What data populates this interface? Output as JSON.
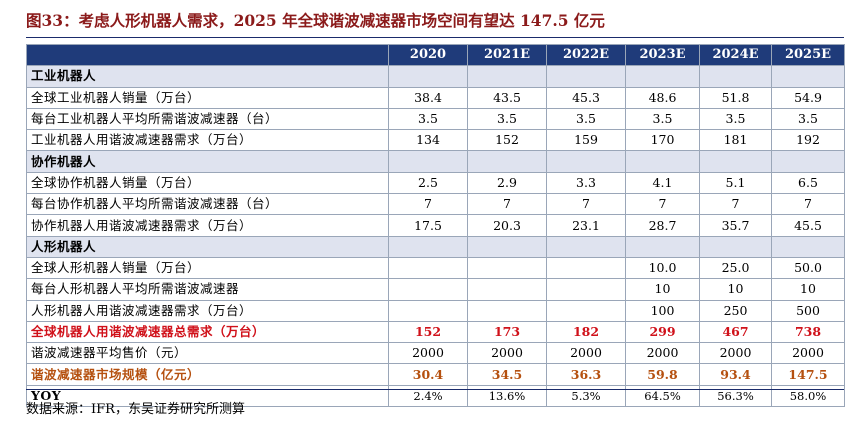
{
  "title": "图33：考虑人形机器人需求，2025 年全球谐波减速器市场空间有望达 147.5 亿元",
  "columns": [
    "",
    "2020",
    "2021E",
    "2022E",
    "2023E",
    "2024E",
    "2025E"
  ],
  "rows": [
    {
      "label": "工业机器人",
      "values": [
        "",
        "",
        "",
        "",
        "",
        ""
      ]
    },
    {
      "label": "全球工业机器人销量（万台）",
      "values": [
        "38.4",
        "43.5",
        "45.3",
        "48.6",
        "51.8",
        "54.9"
      ]
    },
    {
      "label": "每台工业机器人平均所需谐波减速器（台）",
      "values": [
        "3.5",
        "3.5",
        "3.5",
        "3.5",
        "3.5",
        "3.5"
      ]
    },
    {
      "label": "工业机器人用谐波减速器需求（万台）",
      "values": [
        "134",
        "152",
        "159",
        "170",
        "181",
        "192"
      ]
    },
    {
      "label": "协作机器人",
      "values": [
        "",
        "",
        "",
        "",
        "",
        ""
      ]
    },
    {
      "label": "全球协作机器人销量（万台）",
      "values": [
        "2.5",
        "2.9",
        "3.3",
        "4.1",
        "5.1",
        "6.5"
      ]
    },
    {
      "label": "每台协作机器人平均所需谐波减速器（台）",
      "values": [
        "7",
        "7",
        "7",
        "7",
        "7",
        "7"
      ]
    },
    {
      "label": "协作机器人用谐波减速器需求（万台）",
      "values": [
        "17.5",
        "20.3",
        "23.1",
        "28.7",
        "35.7",
        "45.5"
      ]
    },
    {
      "label": "人形机器人",
      "values": [
        "",
        "",
        "",
        "",
        "",
        ""
      ]
    },
    {
      "label": "全球人形机器人销量（万台）",
      "values": [
        "",
        "",
        "",
        "10.0",
        "25.0",
        "50.0"
      ]
    },
    {
      "label": "每台人形机器人平均所需谐波减速器",
      "values": [
        "",
        "",
        "",
        "10",
        "10",
        "10"
      ]
    },
    {
      "label": "人形机器人用谐波减速器需求（万台）",
      "values": [
        "",
        "",
        "",
        "100",
        "250",
        "500"
      ]
    },
    {
      "label": "全球机器人用谐波减速器总需求（万台）",
      "values": [
        "152",
        "173",
        "182",
        "299",
        "467",
        "738"
      ]
    },
    {
      "label": "谐波减速器平均售价（元）",
      "values": [
        "2000",
        "2000",
        "2000",
        "2000",
        "2000",
        "2000"
      ]
    },
    {
      "label": "谐波减速器市场规模（亿元）",
      "values": [
        "30.4",
        "34.5",
        "36.3",
        "59.8",
        "93.4",
        "147.5"
      ]
    },
    {
      "label": "YOY",
      "values": [
        "2.4%",
        "13.6%",
        "5.3%",
        "64.5%",
        "56.3%",
        "58.0%"
      ]
    }
  ],
  "colors": {
    "header_bg": "#1f3b7a",
    "section_bg": "#dfe3ef",
    "total_red": "#d0111a",
    "market_brown": "#b5500f",
    "title": "#8b1a1a"
  },
  "source": "数据来源：IFR，东吴证券研究所测算"
}
